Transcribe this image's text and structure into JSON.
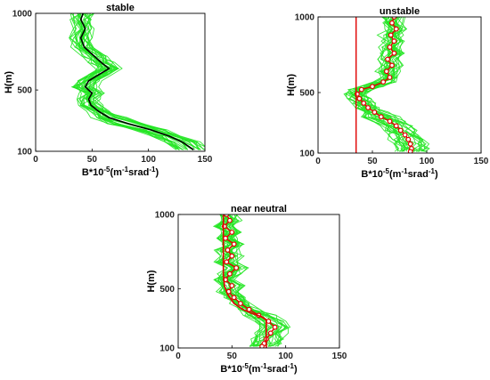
{
  "chart_data": [
    {
      "type": "line",
      "title": "stable",
      "xlabel": "B*10",
      "xlabel_exp": "-5",
      "xlabel_unit_open": "(m",
      "xlabel_unit_exp1": "-1",
      "xlabel_unit_mid": "srad",
      "xlabel_unit_exp2": "-1",
      "xlabel_unit_close": ")",
      "ylabel": "H(m)",
      "xlim": [
        0,
        150
      ],
      "ylim": [
        100,
        1000
      ],
      "xticks": [
        "0",
        "50",
        "100",
        "150"
      ],
      "yticks": [
        {
          "v": 100,
          "t": "100"
        },
        {
          "v": 500,
          "t": "500"
        },
        {
          "v": 1000,
          "t": "1000"
        }
      ],
      "series": [
        {
          "style": "bundle",
          "color": "#22e622"
        },
        {
          "style": "mean-line",
          "color": "#000000",
          "points": [
            [
              42,
              1000
            ],
            [
              40,
              960
            ],
            [
              44,
              900
            ],
            [
              40,
              840
            ],
            [
              43,
              780
            ],
            [
              52,
              720
            ],
            [
              58,
              680
            ],
            [
              65,
              640
            ],
            [
              56,
              600
            ],
            [
              47,
              560
            ],
            [
              44,
              520
            ],
            [
              50,
              480
            ],
            [
              47,
              440
            ],
            [
              49,
              400
            ],
            [
              56,
              360
            ],
            [
              65,
              320
            ],
            [
              82,
              280
            ],
            [
              102,
              240
            ],
            [
              118,
              200
            ],
            [
              130,
              160
            ],
            [
              140,
              110
            ]
          ]
        }
      ]
    },
    {
      "type": "line",
      "title": "unstable",
      "xlabel": "B*10",
      "xlabel_exp": "-5",
      "xlabel_unit_open": "(m",
      "xlabel_unit_exp1": "-1",
      "xlabel_unit_mid": "srad",
      "xlabel_unit_exp2": "-1",
      "xlabel_unit_close": ")",
      "ylabel": "H(m)",
      "xlim": [
        0,
        150
      ],
      "ylim": [
        100,
        1000
      ],
      "xticks": [
        "0",
        "50",
        "100",
        "150"
      ],
      "yticks": [
        {
          "v": 100,
          "t": "100"
        },
        {
          "v": 500,
          "t": "500"
        },
        {
          "v": 1000,
          "t": "1000"
        }
      ],
      "series": [
        {
          "style": "bundle",
          "color": "#22e622"
        },
        {
          "style": "marker-line",
          "color": "#e00000",
          "points": [
            [
              70,
              1000
            ],
            [
              68,
              960
            ],
            [
              72,
              920
            ],
            [
              67,
              880
            ],
            [
              70,
              840
            ],
            [
              66,
              800
            ],
            [
              70,
              760
            ],
            [
              64,
              720
            ],
            [
              68,
              680
            ],
            [
              63,
              640
            ],
            [
              66,
              600
            ],
            [
              60,
              570
            ],
            [
              50,
              540
            ],
            [
              40,
              520
            ],
            [
              36,
              490
            ],
            [
              38,
              460
            ],
            [
              42,
              430
            ],
            [
              46,
              400
            ],
            [
              52,
              370
            ],
            [
              58,
              340
            ],
            [
              66,
              310
            ],
            [
              72,
              280
            ],
            [
              76,
              250
            ],
            [
              80,
              220
            ],
            [
              83,
              190
            ],
            [
              85,
              160
            ],
            [
              86,
              130
            ],
            [
              85,
              110
            ]
          ]
        },
        {
          "style": "vertical-line",
          "color": "#e00000",
          "x": 35
        }
      ]
    },
    {
      "type": "line",
      "title": "near neutral",
      "xlabel": "B*10",
      "xlabel_exp": "-5",
      "xlabel_unit_open": "(m",
      "xlabel_unit_exp1": "-1",
      "xlabel_unit_mid": "srad",
      "xlabel_unit_exp2": "-1",
      "xlabel_unit_close": ")",
      "ylabel": "H(m)",
      "xlim": [
        0,
        150
      ],
      "ylim": [
        100,
        1000
      ],
      "xticks": [
        "0",
        "50",
        "100",
        "150"
      ],
      "yticks": [
        {
          "v": 100,
          "t": "100"
        },
        {
          "v": 500,
          "t": "500"
        },
        {
          "v": 1000,
          "t": "1000"
        }
      ],
      "series": [
        {
          "style": "bundle",
          "color": "#22e622"
        },
        {
          "style": "marker-line",
          "color": "#e00000",
          "points": [
            [
              45,
              1000
            ],
            [
              48,
              960
            ],
            [
              43,
              920
            ],
            [
              50,
              880
            ],
            [
              44,
              840
            ],
            [
              52,
              800
            ],
            [
              46,
              760
            ],
            [
              50,
              720
            ],
            [
              45,
              680
            ],
            [
              54,
              640
            ],
            [
              48,
              600
            ],
            [
              44,
              560
            ],
            [
              50,
              520
            ],
            [
              47,
              480
            ],
            [
              52,
              440
            ],
            [
              58,
              400
            ],
            [
              66,
              360
            ],
            [
              75,
              320
            ],
            [
              84,
              280
            ],
            [
              90,
              240
            ],
            [
              86,
              200
            ],
            [
              82,
              160
            ],
            [
              80,
              130
            ],
            [
              78,
              110
            ]
          ]
        },
        {
          "style": "mean-line",
          "color": "#e00000",
          "points": [
            [
              42,
              1000
            ],
            [
              42,
              900
            ],
            [
              42,
              800
            ],
            [
              42,
              700
            ],
            [
              42,
              600
            ],
            [
              43,
              520
            ],
            [
              46,
              460
            ],
            [
              52,
              400
            ],
            [
              60,
              360
            ],
            [
              70,
              330
            ],
            [
              78,
              310
            ],
            [
              82,
              290
            ],
            [
              82,
              100
            ]
          ]
        }
      ]
    }
  ]
}
